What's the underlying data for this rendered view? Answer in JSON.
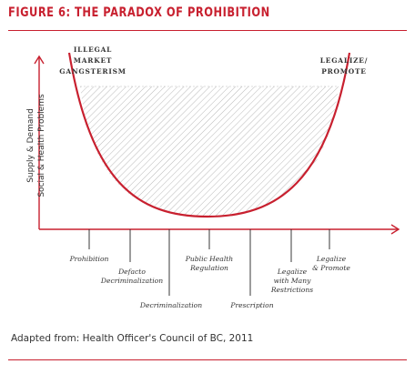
{
  "figure": {
    "title": "FIGURE 6: THE PARADOX OF PROHIBITION",
    "source": "Adapted from: Health Officer's Council of BC, 2011"
  },
  "axis": {
    "y_label_outer": "Supply & Demand",
    "y_label_inner": "Social & Health Problems"
  },
  "corners": {
    "left": [
      "ILLEGAL",
      "MARKET",
      "GANGSTERISM"
    ],
    "right": [
      "LEGALIZE/",
      "PROMOTE"
    ]
  },
  "ticks": [
    {
      "lines": [
        "Prohibition"
      ]
    },
    {
      "lines": [
        "Defacto",
        "Decriminalization"
      ]
    },
    {
      "lines": [
        "Decriminalization"
      ]
    },
    {
      "lines": [
        "Public Health",
        "Regulation"
      ]
    },
    {
      "lines": [
        "Prescription"
      ]
    },
    {
      "lines": [
        "Legalize",
        "with Many",
        "Restrictions"
      ]
    },
    {
      "lines": [
        "Legalize",
        "& Promote"
      ]
    }
  ],
  "colors": {
    "accent": "#c8202f",
    "axis": "#222222",
    "hatch": "#9a9a9a"
  }
}
